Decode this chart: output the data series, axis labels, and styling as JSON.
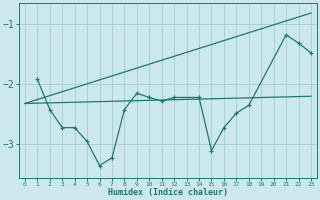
{
  "xlabel": "Humidex (Indice chaleur)",
  "bg_color": "#cce8ed",
  "grid_color": "#a0cdd4",
  "line_color": "#1a7a6e",
  "xlim": [
    -0.5,
    23.5
  ],
  "ylim": [
    -3.55,
    -0.65
  ],
  "yticks": [
    -3,
    -2,
    -1
  ],
  "xticks": [
    0,
    1,
    2,
    3,
    4,
    5,
    6,
    7,
    8,
    9,
    10,
    11,
    12,
    13,
    14,
    15,
    16,
    17,
    18,
    19,
    20,
    21,
    22,
    23
  ],
  "line1_x": [
    0,
    23
  ],
  "line1_y": [
    -2.32,
    -0.82
  ],
  "line2_x": [
    0,
    23
  ],
  "line2_y": [
    -2.32,
    -2.2
  ],
  "line3_x": [
    1,
    2,
    3,
    4,
    5,
    6,
    7,
    8,
    9,
    10,
    11,
    12,
    14,
    15,
    16,
    17,
    18,
    21,
    22,
    23
  ],
  "line3_y": [
    -1.92,
    -2.42,
    -2.72,
    -2.72,
    -2.95,
    -3.35,
    -3.22,
    -2.42,
    -2.15,
    -2.22,
    -2.28,
    -2.22,
    -2.22,
    -3.1,
    -2.72,
    -2.48,
    -2.35,
    -1.18,
    -1.32,
    -1.48
  ]
}
